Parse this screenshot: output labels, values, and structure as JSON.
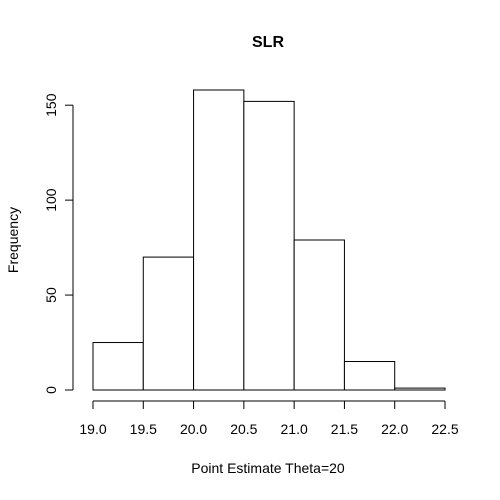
{
  "chart_data": {
    "type": "bar",
    "title": "SLR",
    "xlabel": "Point Estimate Theta=20",
    "ylabel": "Frequency",
    "bins": [
      {
        "from": 19.0,
        "to": 19.5,
        "count": 25
      },
      {
        "from": 19.5,
        "to": 20.0,
        "count": 70
      },
      {
        "from": 20.0,
        "to": 20.5,
        "count": 158
      },
      {
        "from": 20.5,
        "to": 21.0,
        "count": 152
      },
      {
        "from": 21.0,
        "to": 21.5,
        "count": 79
      },
      {
        "from": 21.5,
        "to": 22.0,
        "count": 15
      },
      {
        "from": 22.0,
        "to": 22.5,
        "count": 1
      }
    ],
    "x_ticks": [
      "19.0",
      "19.5",
      "20.0",
      "20.5",
      "21.0",
      "21.5",
      "22.0",
      "22.5"
    ],
    "y_ticks": [
      "0",
      "50",
      "100",
      "150"
    ],
    "xlim": [
      19.0,
      22.5
    ],
    "ylim": [
      0,
      158
    ],
    "grid": false,
    "colors": {
      "bar_fill": "#ffffff",
      "bar_stroke": "#000000"
    }
  }
}
